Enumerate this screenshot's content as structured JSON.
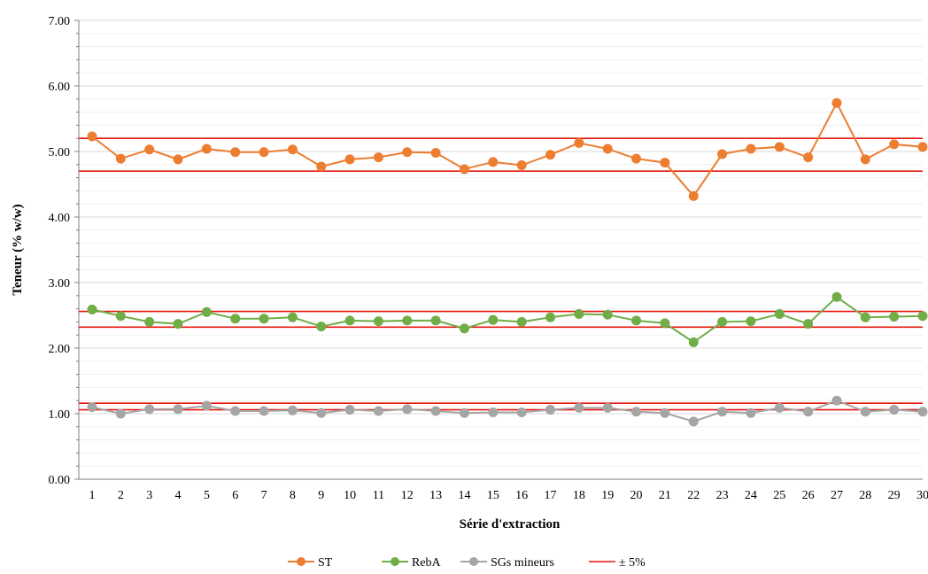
{
  "chart_data": {
    "type": "line",
    "title": "",
    "xlabel": "Série d'extraction",
    "ylabel": "Teneur (% w/w)",
    "ylim": [
      0,
      7
    ],
    "yticks": [
      "0.00",
      "1.00",
      "2.00",
      "3.00",
      "4.00",
      "5.00",
      "6.00",
      "7.00"
    ],
    "x": [
      1,
      2,
      3,
      4,
      5,
      6,
      7,
      8,
      9,
      10,
      11,
      12,
      13,
      14,
      15,
      16,
      17,
      18,
      19,
      20,
      21,
      22,
      23,
      24,
      25,
      26,
      27,
      28,
      29,
      30
    ],
    "x_tick_labels": [
      "1",
      "2",
      "3",
      "4",
      "5",
      "6",
      "7",
      "8",
      "9",
      "10",
      "11",
      "12",
      "13",
      "14",
      "15",
      "16",
      "17",
      "18",
      "19",
      "20",
      "21",
      "22",
      "23",
      "24",
      "25",
      "26",
      "27",
      "28",
      "29",
      "30"
    ],
    "grid": "horizontal",
    "legend_position": "bottom",
    "series": [
      {
        "name": "ST",
        "color": "#ED7D31",
        "marker": "circle",
        "values": [
          5.23,
          4.89,
          5.03,
          4.88,
          5.04,
          4.99,
          4.99,
          5.03,
          4.77,
          4.88,
          4.91,
          4.99,
          4.98,
          4.73,
          4.84,
          4.79,
          4.95,
          5.13,
          5.04,
          4.89,
          4.83,
          4.32,
          4.96,
          5.04,
          5.07,
          4.91,
          5.74,
          4.88,
          5.11,
          5.07
        ]
      },
      {
        "name": "RebA",
        "color": "#70AD47",
        "marker": "circle",
        "values": [
          2.59,
          2.49,
          2.4,
          2.37,
          2.55,
          2.45,
          2.45,
          2.47,
          2.33,
          2.42,
          2.41,
          2.42,
          2.42,
          2.3,
          2.43,
          2.4,
          2.47,
          2.52,
          2.51,
          2.42,
          2.38,
          2.09,
          2.4,
          2.41,
          2.52,
          2.37,
          2.78,
          2.47,
          2.48,
          2.49
        ]
      },
      {
        "name": "SGs mineurs",
        "color": "#A5A5A5",
        "marker": "circle",
        "values": [
          1.1,
          1.0,
          1.07,
          1.07,
          1.12,
          1.04,
          1.04,
          1.05,
          1.01,
          1.06,
          1.04,
          1.07,
          1.04,
          1.01,
          1.02,
          1.02,
          1.06,
          1.09,
          1.09,
          1.03,
          1.01,
          0.88,
          1.03,
          1.01,
          1.09,
          1.03,
          1.2,
          1.03,
          1.06,
          1.03
        ]
      }
    ],
    "reference_lines": {
      "name": "± 5%",
      "color": "#E8160C",
      "levels": [
        5.2,
        4.7,
        2.56,
        2.32,
        1.16,
        1.06
      ]
    }
  }
}
